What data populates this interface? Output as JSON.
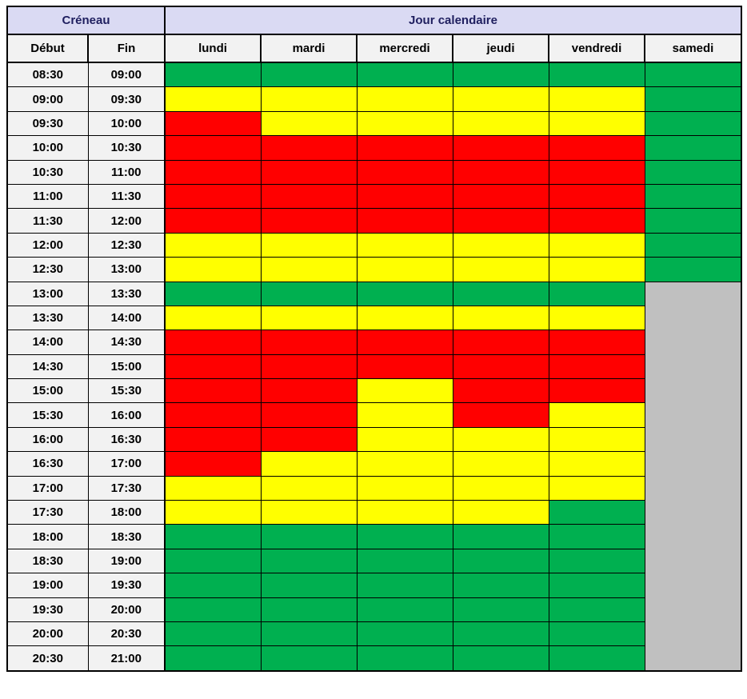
{
  "header": {
    "creneau_label": "Créneau",
    "jour_label": "Jour calendaire",
    "debut_label": "Début",
    "fin_label": "Fin",
    "days": [
      "lundi",
      "mardi",
      "mercredi",
      "jeudi",
      "vendredi",
      "samedi"
    ]
  },
  "colors": {
    "green": "#00B050",
    "yellow": "#FFFF00",
    "red": "#FF0000",
    "gray": "#C0C0C0",
    "header_band_bg": "#DADAF3",
    "subheader_bg": "#F2F2F2",
    "time_cell_bg": "#F2F2F2",
    "header_text": "#1F1F5F",
    "grid_line": "#000000"
  },
  "rows": [
    {
      "debut": "08:30",
      "fin": "09:00",
      "cells": [
        "green",
        "green",
        "green",
        "green",
        "green",
        "green"
      ]
    },
    {
      "debut": "09:00",
      "fin": "09:30",
      "cells": [
        "yellow",
        "yellow",
        "yellow",
        "yellow",
        "yellow",
        "green"
      ]
    },
    {
      "debut": "09:30",
      "fin": "10:00",
      "cells": [
        "red",
        "yellow",
        "yellow",
        "yellow",
        "yellow",
        "green"
      ]
    },
    {
      "debut": "10:00",
      "fin": "10:30",
      "cells": [
        "red",
        "red",
        "red",
        "red",
        "red",
        "green"
      ]
    },
    {
      "debut": "10:30",
      "fin": "11:00",
      "cells": [
        "red",
        "red",
        "red",
        "red",
        "red",
        "green"
      ]
    },
    {
      "debut": "11:00",
      "fin": "11:30",
      "cells": [
        "red",
        "red",
        "red",
        "red",
        "red",
        "green"
      ]
    },
    {
      "debut": "11:30",
      "fin": "12:00",
      "cells": [
        "red",
        "red",
        "red",
        "red",
        "red",
        "green"
      ]
    },
    {
      "debut": "12:00",
      "fin": "12:30",
      "cells": [
        "yellow",
        "yellow",
        "yellow",
        "yellow",
        "yellow",
        "green"
      ]
    },
    {
      "debut": "12:30",
      "fin": "13:00",
      "cells": [
        "yellow",
        "yellow",
        "yellow",
        "yellow",
        "yellow",
        "green"
      ]
    },
    {
      "debut": "13:00",
      "fin": "13:30",
      "cells": [
        "green",
        "green",
        "green",
        "green",
        "green"
      ]
    },
    {
      "debut": "13:30",
      "fin": "14:00",
      "cells": [
        "yellow",
        "yellow",
        "yellow",
        "yellow",
        "yellow"
      ]
    },
    {
      "debut": "14:00",
      "fin": "14:30",
      "cells": [
        "red",
        "red",
        "red",
        "red",
        "red"
      ]
    },
    {
      "debut": "14:30",
      "fin": "15:00",
      "cells": [
        "red",
        "red",
        "red",
        "red",
        "red"
      ]
    },
    {
      "debut": "15:00",
      "fin": "15:30",
      "cells": [
        "red",
        "red",
        "yellow",
        "red",
        "red"
      ]
    },
    {
      "debut": "15:30",
      "fin": "16:00",
      "cells": [
        "red",
        "red",
        "yellow",
        "red",
        "yellow"
      ]
    },
    {
      "debut": "16:00",
      "fin": "16:30",
      "cells": [
        "red",
        "red",
        "yellow",
        "yellow",
        "yellow"
      ]
    },
    {
      "debut": "16:30",
      "fin": "17:00",
      "cells": [
        "red",
        "yellow",
        "yellow",
        "yellow",
        "yellow"
      ]
    },
    {
      "debut": "17:00",
      "fin": "17:30",
      "cells": [
        "yellow",
        "yellow",
        "yellow",
        "yellow",
        "yellow"
      ]
    },
    {
      "debut": "17:30",
      "fin": "18:00",
      "cells": [
        "yellow",
        "yellow",
        "yellow",
        "yellow",
        "green"
      ]
    },
    {
      "debut": "18:00",
      "fin": "18:30",
      "cells": [
        "green",
        "green",
        "green",
        "green",
        "green"
      ]
    },
    {
      "debut": "18:30",
      "fin": "19:00",
      "cells": [
        "green",
        "green",
        "green",
        "green",
        "green"
      ]
    },
    {
      "debut": "19:00",
      "fin": "19:30",
      "cells": [
        "green",
        "green",
        "green",
        "green",
        "green"
      ]
    },
    {
      "debut": "19:30",
      "fin": "20:00",
      "cells": [
        "green",
        "green",
        "green",
        "green",
        "green"
      ]
    },
    {
      "debut": "20:00",
      "fin": "20:30",
      "cells": [
        "green",
        "green",
        "green",
        "green",
        "green"
      ]
    },
    {
      "debut": "20:30",
      "fin": "21:00",
      "cells": [
        "green",
        "green",
        "green",
        "green",
        "green"
      ]
    }
  ],
  "gray_block": {
    "row_index": 9,
    "rowspan": 16,
    "color": "gray"
  }
}
